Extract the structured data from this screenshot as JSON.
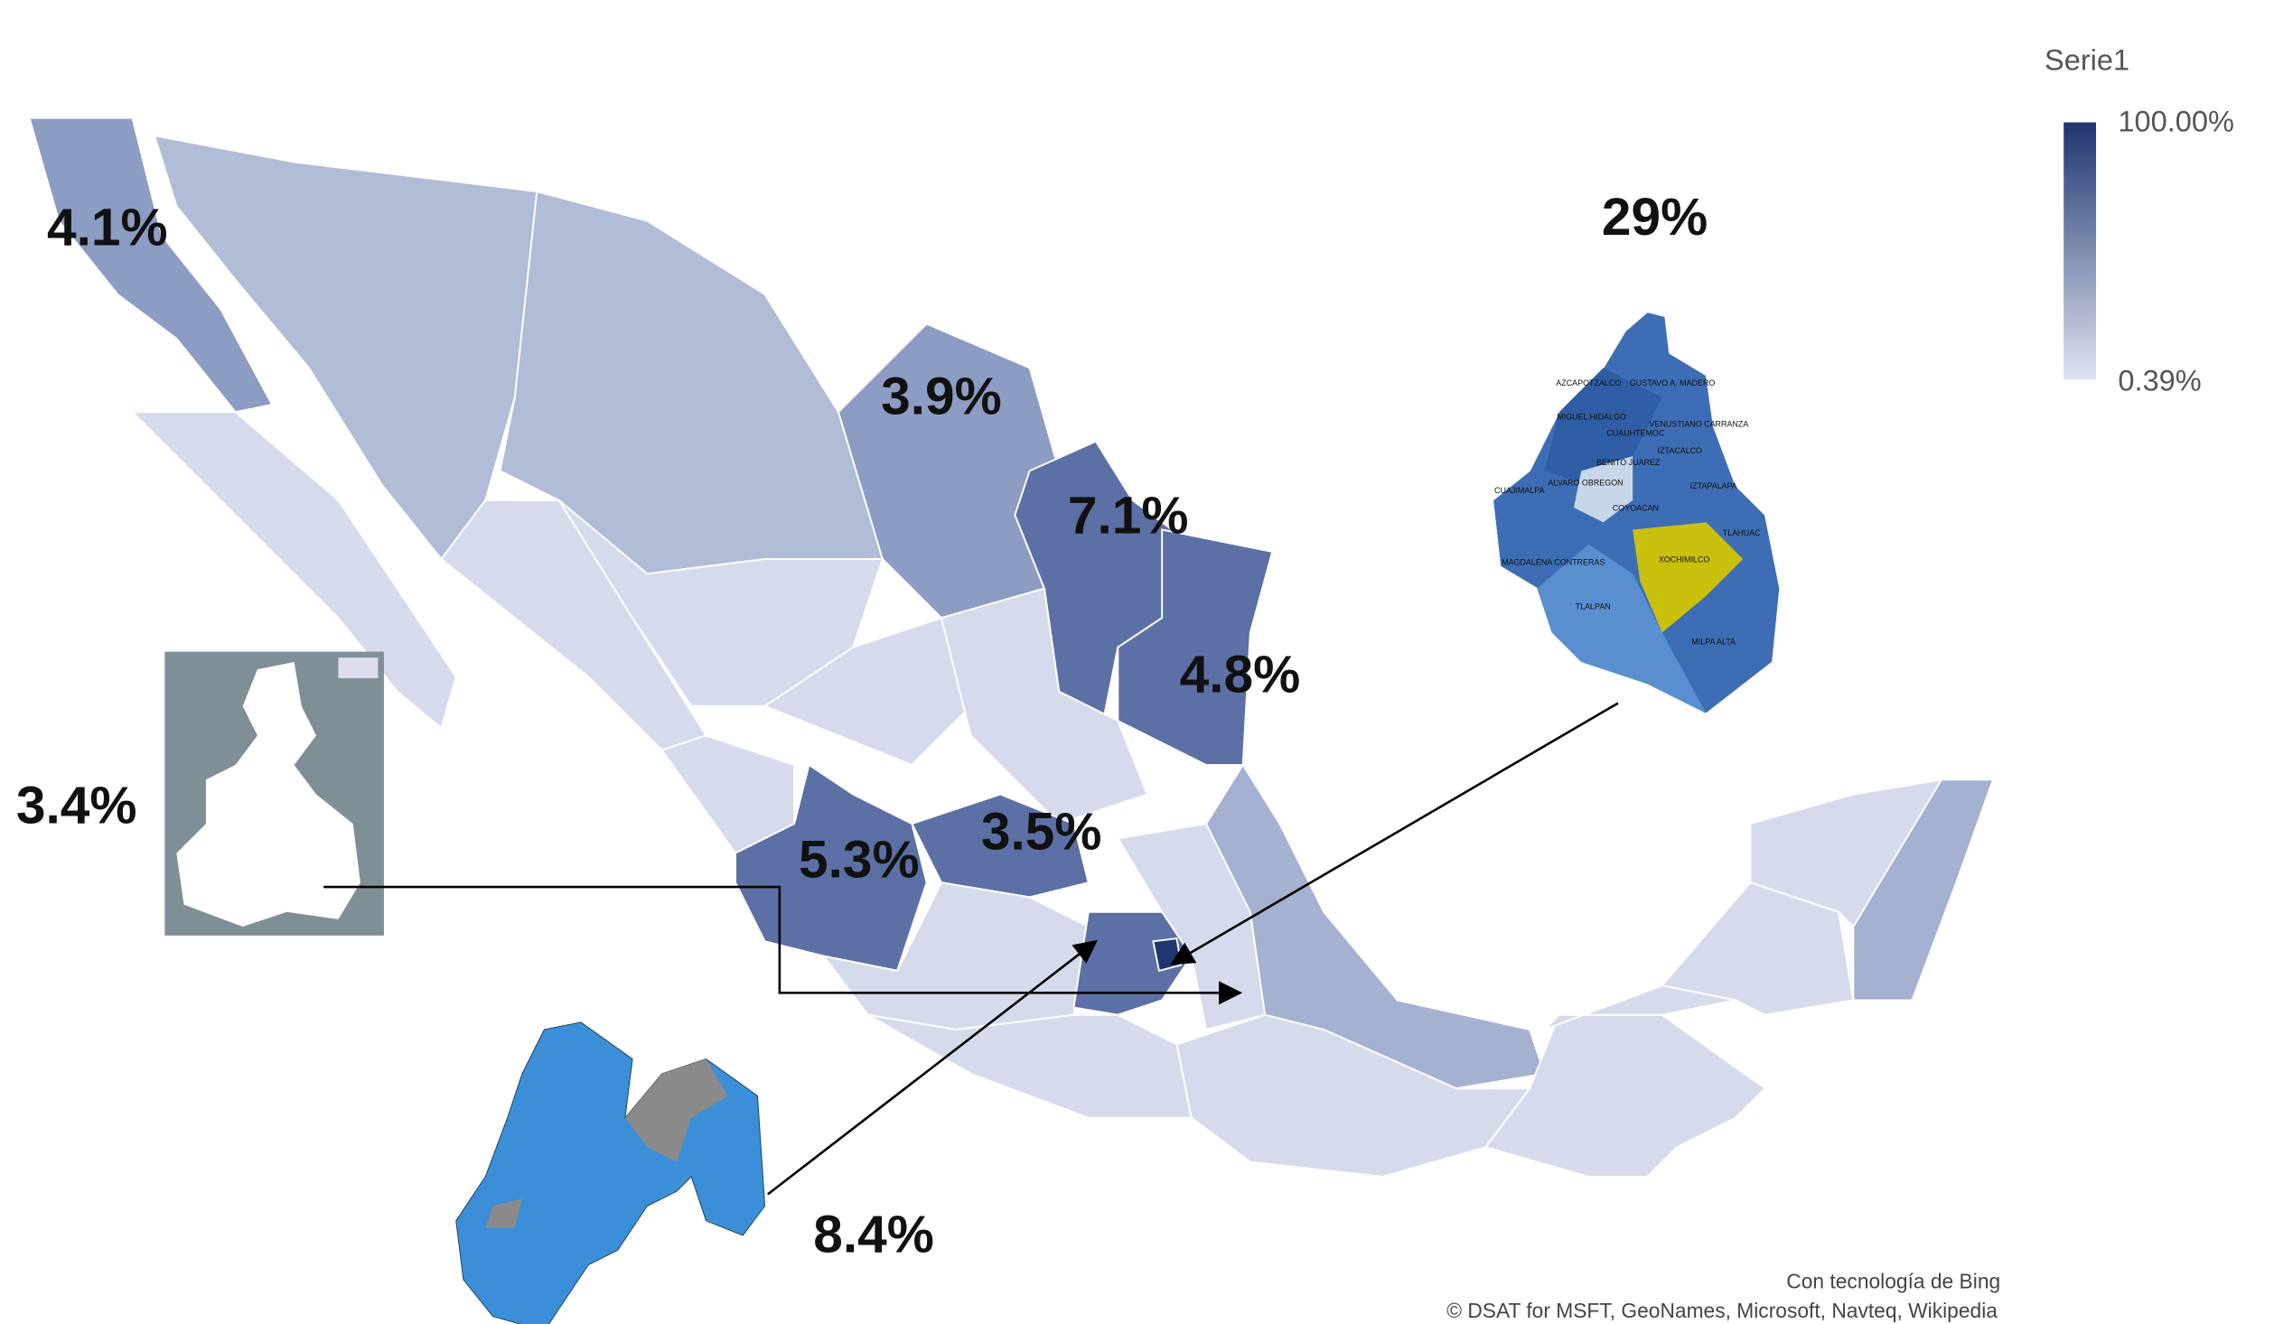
{
  "map": {
    "labels": [
      "4.1%",
      "3.9%",
      "7.1%",
      "4.8%",
      "3.4%",
      "5.3%",
      "3.5%",
      "8.4%",
      "29%"
    ],
    "legend": {
      "title": "Serie1",
      "max": "100.00%",
      "min": "0.39%"
    },
    "cdmx_inset": {
      "labels": [
        "AZCAPOTZALCO",
        "GUSTAVO A. MADERO",
        "MIGUEL HIDALGO",
        "CUAUHTEMOC",
        "VENUSTIANO CARRANZA",
        "BENITO JUAREZ",
        "IZTACALCO",
        "CUAJIMALPA",
        "ALVARO OBREGON",
        "IZTAPALAPA",
        "COYOACAN",
        "TLAHUAC",
        "MAGDALENA CONTRERAS",
        "XOCHIMILCO",
        "TLALPAN",
        "MILPA ALTA"
      ]
    },
    "attribution": [
      "Con tecnología de Bing",
      "© DSAT for MSFT, GeoNames, Microsoft, Navteq, Wikipedia"
    ]
  }
}
